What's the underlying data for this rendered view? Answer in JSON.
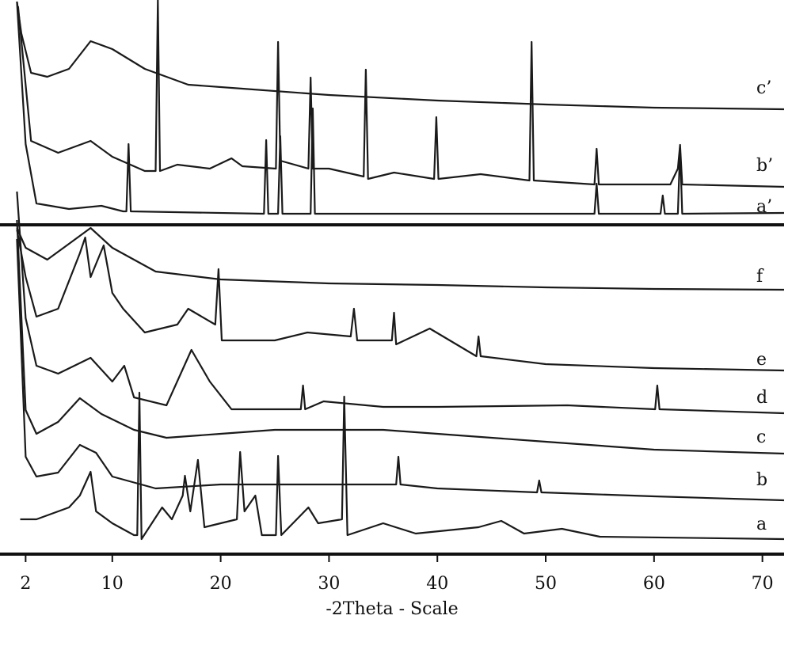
{
  "chart_data": {
    "type": "line",
    "xlabel": "-2Theta - Scale",
    "xlim": [
      0,
      72
    ],
    "xticks": [
      2,
      10,
      20,
      30,
      40,
      50,
      60,
      70
    ],
    "color": "#1a1a1a",
    "series": [
      {
        "name": "c’",
        "x": [
          1.2,
          1.6,
          2.5,
          4,
          6,
          8,
          10,
          13,
          17,
          22,
          30,
          40,
          50,
          60,
          72
        ],
        "values": [
          140,
          100,
          50,
          45,
          55,
          90,
          80,
          55,
          35,
          30,
          22,
          15,
          10,
          6,
          4
        ]
      },
      {
        "name": "b’",
        "x": [
          1.3,
          2.5,
          5,
          8,
          10,
          13,
          14.0,
          14.2,
          14.4,
          16,
          19,
          21,
          22,
          25.1,
          25.3,
          25.5,
          28.1,
          28.3,
          28.5,
          30,
          33.2,
          33.4,
          33.6,
          36,
          39.7,
          39.9,
          40.1,
          44,
          48.5,
          48.7,
          48.9,
          54.5,
          54.7,
          54.9,
          61.5,
          62.2,
          62.4,
          62.6,
          72
        ],
        "values": [
          230,
          60,
          45,
          60,
          40,
          22,
          22,
          238,
          22,
          30,
          25,
          38,
          28,
          25,
          185,
          35,
          25,
          140,
          25,
          25,
          15,
          150,
          12,
          20,
          12,
          90,
          12,
          18,
          10,
          185,
          10,
          5,
          50,
          5,
          5,
          25,
          55,
          5,
          2
        ]
      },
      {
        "name": "a’",
        "x": [
          1.2,
          2,
          3,
          6,
          9,
          11,
          11.3,
          11.5,
          11.7,
          24,
          24.2,
          24.4,
          25.3,
          25.5,
          25.7,
          28.3,
          28.5,
          28.7,
          54.5,
          54.7,
          54.9,
          60.6,
          60.8,
          61,
          62.2,
          62.4,
          62.6,
          72
        ],
        "values": [
          270,
          90,
          15,
          8,
          12,
          5,
          5,
          90,
          5,
          2,
          95,
          2,
          2,
          100,
          2,
          2,
          135,
          2,
          2,
          40,
          2,
          2,
          25,
          2,
          2,
          85,
          2,
          3
        ]
      },
      {
        "name": "f",
        "x": [
          1.2,
          2,
          4,
          6,
          8,
          10,
          14,
          20,
          30,
          40,
          50,
          60,
          72
        ],
        "values": [
          80,
          55,
          40,
          60,
          80,
          55,
          25,
          15,
          10,
          8,
          5,
          3,
          2
        ]
      },
      {
        "name": "e",
        "x": [
          1.2,
          2,
          3,
          5,
          7,
          7.5,
          8,
          9.2,
          10,
          11,
          13,
          16,
          17,
          19.5,
          19.8,
          20.1,
          25,
          28,
          32,
          32.3,
          32.6,
          35.8,
          36,
          36.2,
          39.3,
          43.6,
          43.8,
          44,
          50,
          60,
          72
        ],
        "values": [
          180,
          120,
          70,
          80,
          150,
          170,
          120,
          160,
          100,
          80,
          50,
          60,
          80,
          60,
          130,
          40,
          40,
          50,
          45,
          80,
          40,
          40,
          75,
          35,
          55,
          20,
          45,
          20,
          10,
          5,
          2
        ]
      },
      {
        "name": "d",
        "x": [
          1.2,
          2,
          3,
          5,
          8,
          10,
          11.1,
          12,
          15,
          17.3,
          19,
          21,
          27.4,
          27.6,
          27.8,
          29.5,
          35,
          40,
          52,
          60.1,
          60.3,
          60.5,
          72
        ],
        "values": [
          280,
          120,
          60,
          50,
          70,
          40,
          60,
          20,
          10,
          80,
          40,
          5,
          5,
          35,
          5,
          15,
          8,
          8,
          10,
          5,
          35,
          5,
          0
        ]
      },
      {
        "name": "c",
        "x": [
          1.2,
          2,
          3,
          5,
          7,
          9,
          12,
          15,
          20,
          25,
          30,
          35,
          40,
          50,
          60,
          72
        ],
        "values": [
          300,
          60,
          30,
          45,
          75,
          55,
          35,
          25,
          30,
          35,
          35,
          35,
          30,
          20,
          10,
          5
        ]
      },
      {
        "name": "b",
        "x": [
          1.2,
          2,
          3,
          5,
          7,
          8.5,
          10,
          14,
          20,
          30,
          36.2,
          36.4,
          36.6,
          40,
          49.2,
          49.4,
          49.6,
          60,
          72
        ],
        "values": [
          330,
          55,
          30,
          35,
          70,
          60,
          30,
          15,
          20,
          20,
          20,
          55,
          20,
          15,
          10,
          25,
          10,
          5,
          0
        ]
      },
      {
        "name": "a",
        "x": [
          1.5,
          3,
          5,
          6,
          7,
          8,
          8.5,
          10,
          12,
          12.3,
          12.5,
          12.7,
          14.6,
          15.5,
          16.5,
          16.7,
          17.2,
          17.9,
          18.5,
          21.5,
          21.8,
          22.2,
          23.2,
          23.8,
          25.1,
          25.3,
          25.6,
          28.1,
          29,
          31.2,
          31.4,
          31.7,
          35,
          38,
          43.8,
          45.9,
          48,
          51.5,
          55,
          72
        ],
        "values": [
          30,
          30,
          40,
          45,
          60,
          90,
          40,
          25,
          10,
          10,
          190,
          5,
          45,
          30,
          60,
          85,
          40,
          105,
          20,
          30,
          115,
          40,
          60,
          10,
          10,
          110,
          10,
          45,
          25,
          30,
          185,
          10,
          25,
          12,
          20,
          28,
          12,
          18,
          8,
          5
        ]
      }
    ]
  }
}
